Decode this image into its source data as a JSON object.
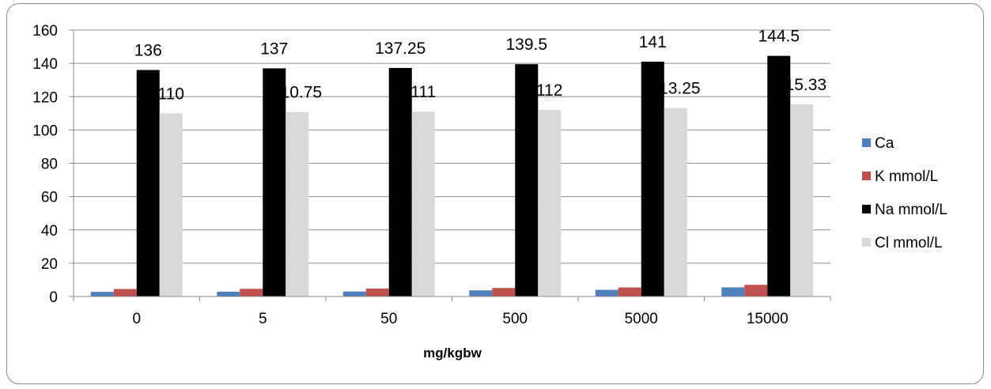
{
  "chart_data": {
    "type": "bar",
    "title": "",
    "xlabel": "mg/kgbw",
    "ylabel": "",
    "ylim": [
      0,
      160
    ],
    "yticks": [
      0,
      20,
      40,
      60,
      80,
      100,
      120,
      140,
      160
    ],
    "grid": true,
    "legend_position": "right",
    "categories": [
      "0",
      "5",
      "50",
      "500",
      "5000",
      "15000"
    ],
    "series": [
      {
        "name": "Ca",
        "color": "#4f81bd",
        "values": [
          2.8,
          2.9,
          3.0,
          3.7,
          4.0,
          5.5
        ],
        "labels": null
      },
      {
        "name": "K mmol/L",
        "color": "#c0504d",
        "values": [
          4.5,
          4.6,
          4.8,
          5.1,
          5.4,
          7.0
        ],
        "labels": null
      },
      {
        "name": "Na mmol/L",
        "color": "#000000",
        "values": [
          136,
          137,
          137.25,
          139.5,
          141,
          144.5
        ],
        "labels": [
          "136",
          "137",
          "137.25",
          "139.5",
          "141",
          "144.5"
        ]
      },
      {
        "name": "Cl mmol/L",
        "color": "#d9d9d9",
        "values": [
          110,
          110.75,
          111,
          112,
          113.25,
          115.33
        ],
        "labels": [
          "110",
          "110.75",
          "111",
          "112",
          "113.25",
          "115.33"
        ]
      }
    ]
  }
}
